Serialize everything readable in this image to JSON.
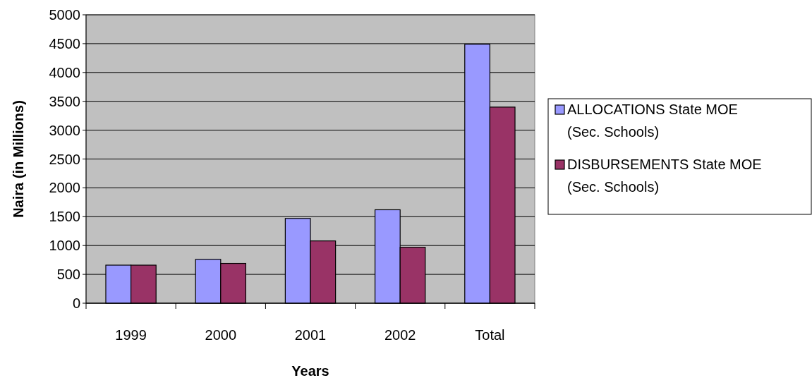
{
  "chart_data": {
    "type": "bar",
    "xlabel": "Years",
    "ylabel": "Naira (in Millions)",
    "categories": [
      "1999",
      "2000",
      "2001",
      "2002",
      "Total"
    ],
    "series": [
      {
        "name": "ALLOCATIONS State MOE (Sec. Schools)",
        "color": "#9999ff",
        "values": [
          660,
          760,
          1470,
          1620,
          4490
        ]
      },
      {
        "name": "DISBURSEMENTS State MOE (Sec. Schools)",
        "color": "#993366",
        "values": [
          660,
          690,
          1080,
          970,
          3400
        ]
      }
    ],
    "ylim": [
      0,
      5000
    ],
    "yticks": [
      0,
      500,
      1000,
      1500,
      2000,
      2500,
      3000,
      3500,
      4000,
      4500,
      5000
    ],
    "grid": "y",
    "legend": "right"
  }
}
